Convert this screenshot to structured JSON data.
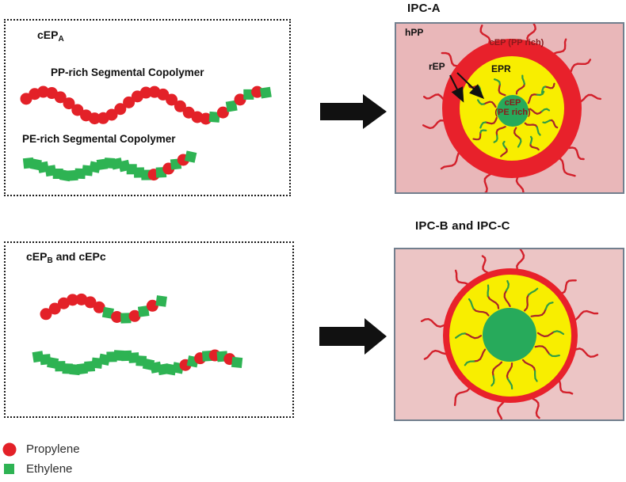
{
  "figure": {
    "top_left": {
      "label_base": "cEP",
      "label_sub": "A",
      "chain1_label": "PP-rich Segmental Copolymer",
      "chain2_label": "PE-rich Segmental Copolymer",
      "chain1_sequence": "PPPPPPPPPPPPPPPPPPPPPPEPEPEPE",
      "chain2_sequence": "EEEEEEEEEEEEEEEEEPEPEPE"
    },
    "top_right": {
      "title": "IPC-A",
      "matrix_label": "hPP",
      "shell_label": "cEP (PP rich)",
      "epr_label": "EPR",
      "rep_label": "rEP",
      "core_label_line1": "cEP",
      "core_label_line2": "(PE rich)"
    },
    "bottom_left": {
      "label_base": "cEP",
      "label_sub": "B",
      "label_rest": " and cEPc",
      "chain1_sequence": "PPPPPPPEPEPEPE",
      "chain2_sequence": "EEEEEEEEEEEEEEEEEEEEPEPEPEPE"
    },
    "bottom_right": {
      "title": "IPC-B and IPC-C"
    }
  },
  "legend": {
    "items": [
      {
        "label": "Propylene",
        "marker": "propylene-circle-icon"
      },
      {
        "label": "Ethylene",
        "marker": "ethylene-square-icon"
      }
    ]
  },
  "colors": {
    "propylene_red": "#e32128",
    "ethylene_green": "#2eb353",
    "matrix_pink": "#e9b7b9",
    "matrix_pink_b": "#ecc5c5",
    "ring_red": "#e8212b",
    "epr_yellow": "#f8ee00",
    "core_green": "#27aa5b",
    "squiggle_outer_red": "#d3202b",
    "squiggle_inner_red": "#a8242a",
    "squiggle_inner_green": "#2f9e44",
    "dark_red_text": "#8a1a1c",
    "panel_border": "#727f8e",
    "arrow_black": "#111111"
  }
}
